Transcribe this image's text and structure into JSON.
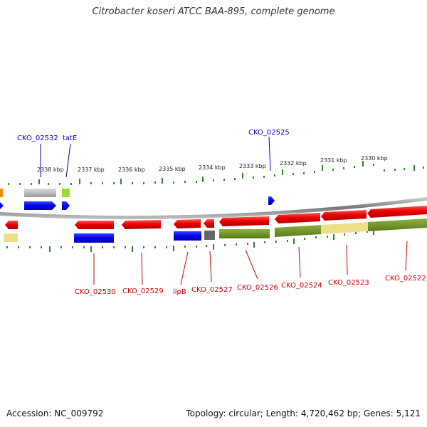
{
  "title": "Citrobacter koseri ATCC BAA-895, complete genome",
  "footer": {
    "accession": "Accession: NC_009792",
    "summary": "Topology: circular; Length: 4,720,462 bp; Genes: 5,121"
  },
  "scale_labels": [
    "2338 kbp",
    "2337 kbp",
    "2336 kbp",
    "2335 kbp",
    "2334 kbp",
    "2333 kbp",
    "2332 kbp",
    "2331 kbp",
    "2330 kbp"
  ],
  "top_gene_labels": [
    {
      "id": "CKO_02532",
      "text": "CKO_02532"
    },
    {
      "id": "tatE",
      "text": "tatE"
    },
    {
      "id": "CKO_02525",
      "text": "CKO_02525"
    }
  ],
  "bottom_gene_labels": [
    {
      "id": "CKO_02530",
      "text": "CKO_02530"
    },
    {
      "id": "CKO_02529",
      "text": "CKO_02529"
    },
    {
      "id": "lipB",
      "text": "lipB"
    },
    {
      "id": "CKO_02527",
      "text": "CKO_02527"
    },
    {
      "id": "CKO_02526",
      "text": "CKO_02526"
    },
    {
      "id": "CKO_02524",
      "text": "CKO_02524"
    },
    {
      "id": "CKO_02523",
      "text": "CKO_02523"
    },
    {
      "id": "CKO_02522",
      "text": "CKO_02522"
    }
  ],
  "colors": {
    "forward_cds": "#0000ee",
    "reverse_cds": "#ee0000",
    "tick": "#2a8a2a",
    "backbone": "#888888",
    "top_label": "#0000cc",
    "bottom_label": "#cc0000",
    "olive": "#6b8e23",
    "khaki": "#eee08a",
    "gray_feature": "#aaaaaa",
    "orange": "#ff8800",
    "lime": "#99dd33"
  }
}
